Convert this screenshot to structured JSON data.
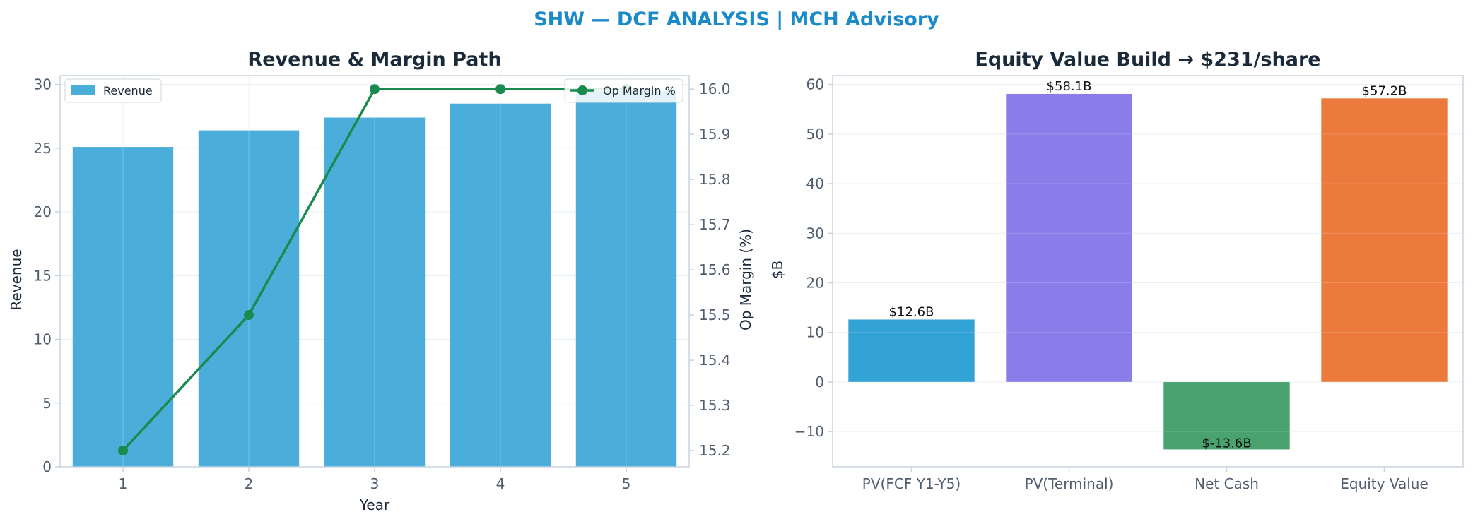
{
  "title": "SHW — DCF ANALYSIS | MCH Advisory",
  "colors": {
    "title": "#1b8ac8",
    "revenue_bar": "#4badd9",
    "margin_line": "#1a8a4e",
    "pv_fcf": "#33a2d4",
    "pv_terminal": "#8a7dea",
    "net_cash": "#4aa36e",
    "equity": "#ec7a3d",
    "spine": "#c8d3df",
    "grid": "#e8edf2"
  },
  "chart_data": [
    {
      "type": "bar",
      "title": "Revenue & Margin Path",
      "xlabel": "Year",
      "ylabel": "Revenue",
      "ylabel_right": "Op Margin (%)",
      "categories": [
        "1",
        "2",
        "3",
        "4",
        "5"
      ],
      "ylim": [
        0,
        30.7
      ],
      "ylim_right": [
        15.164,
        16.03
      ],
      "yticks": [
        "0",
        "5",
        "10",
        "15",
        "20",
        "25",
        "30"
      ],
      "yticks_right": [
        "15.2",
        "15.3",
        "15.4",
        "15.5",
        "15.6",
        "15.7",
        "15.8",
        "15.9",
        "16.0"
      ],
      "series": [
        {
          "name": "Revenue",
          "kind": "bar",
          "axis": "left",
          "values": [
            25.1,
            26.4,
            27.4,
            28.5,
            29.5
          ]
        },
        {
          "name": "Op Margin %",
          "kind": "line",
          "axis": "right",
          "values": [
            15.2,
            15.5,
            16.0,
            16.0,
            16.0
          ]
        }
      ],
      "legend": [
        {
          "name": "Revenue",
          "placement": "top-left"
        },
        {
          "name": "Op Margin %",
          "placement": "top-right"
        }
      ],
      "grid": true
    },
    {
      "type": "bar",
      "title": "Equity Value Build → $231/share",
      "xlabel": "",
      "ylabel": "$B",
      "categories": [
        "PV(FCF Y1-Y5)",
        "PV(Terminal)",
        "Net Cash",
        "Equity Value"
      ],
      "values": [
        12.6,
        58.1,
        -13.6,
        57.2
      ],
      "data_labels": [
        "$12.6B",
        "$58.1B",
        "$-13.6B",
        "$57.2B"
      ],
      "ylim": [
        -17.1,
        61.8
      ],
      "yticks": [
        "−10",
        "0",
        "10",
        "20",
        "30",
        "40",
        "50",
        "60"
      ],
      "grid": true
    }
  ]
}
